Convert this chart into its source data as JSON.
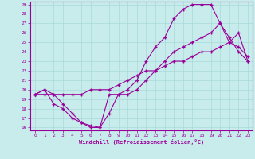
{
  "xlabel": "Windchill (Refroidissement éolien,°C)",
  "background_color": "#c8ecec",
  "line_color": "#990099",
  "grid_color": "#a8d8d8",
  "xlim": [
    -0.5,
    23.5
  ],
  "ylim": [
    15.7,
    29.3
  ],
  "xticks": [
    0,
    1,
    2,
    3,
    4,
    5,
    6,
    7,
    8,
    9,
    10,
    11,
    12,
    13,
    14,
    15,
    16,
    17,
    18,
    19,
    20,
    21,
    22,
    23
  ],
  "yticks": [
    16,
    17,
    18,
    19,
    20,
    21,
    22,
    23,
    24,
    25,
    26,
    27,
    28,
    29
  ],
  "line1_x": [
    0,
    1,
    2,
    3,
    4,
    5,
    6,
    7,
    8,
    9,
    10,
    11,
    12,
    13,
    14,
    15,
    16,
    17,
    18,
    19,
    20,
    21,
    22,
    23
  ],
  "line1_y": [
    19.5,
    20.0,
    19.5,
    18.5,
    17.5,
    16.5,
    16.2,
    16.0,
    19.5,
    19.5,
    20.0,
    21.0,
    23.0,
    24.5,
    25.5,
    27.5,
    28.5,
    29.0,
    29.0,
    29.0,
    27.0,
    25.0,
    24.5,
    23.5
  ],
  "line2_x": [
    0,
    1,
    2,
    3,
    4,
    5,
    6,
    7,
    8,
    9,
    10,
    11,
    12,
    13,
    14,
    15,
    16,
    17,
    18,
    19,
    20,
    21,
    22,
    23
  ],
  "line2_y": [
    19.5,
    20.0,
    18.5,
    18.0,
    17.0,
    16.5,
    16.0,
    16.0,
    17.5,
    19.5,
    19.5,
    20.0,
    21.0,
    22.0,
    23.0,
    24.0,
    24.5,
    25.0,
    25.5,
    26.0,
    27.0,
    25.5,
    24.0,
    23.0
  ],
  "line3_x": [
    0,
    1,
    2,
    3,
    4,
    5,
    6,
    7,
    8,
    9,
    10,
    11,
    12,
    13,
    14,
    15,
    16,
    17,
    18,
    19,
    20,
    21,
    22,
    23
  ],
  "line3_y": [
    19.5,
    19.5,
    19.5,
    19.5,
    19.5,
    19.5,
    20.0,
    20.0,
    20.0,
    20.5,
    21.0,
    21.5,
    22.0,
    22.0,
    22.5,
    23.0,
    23.0,
    23.5,
    24.0,
    24.0,
    24.5,
    25.0,
    26.0,
    23.0
  ]
}
